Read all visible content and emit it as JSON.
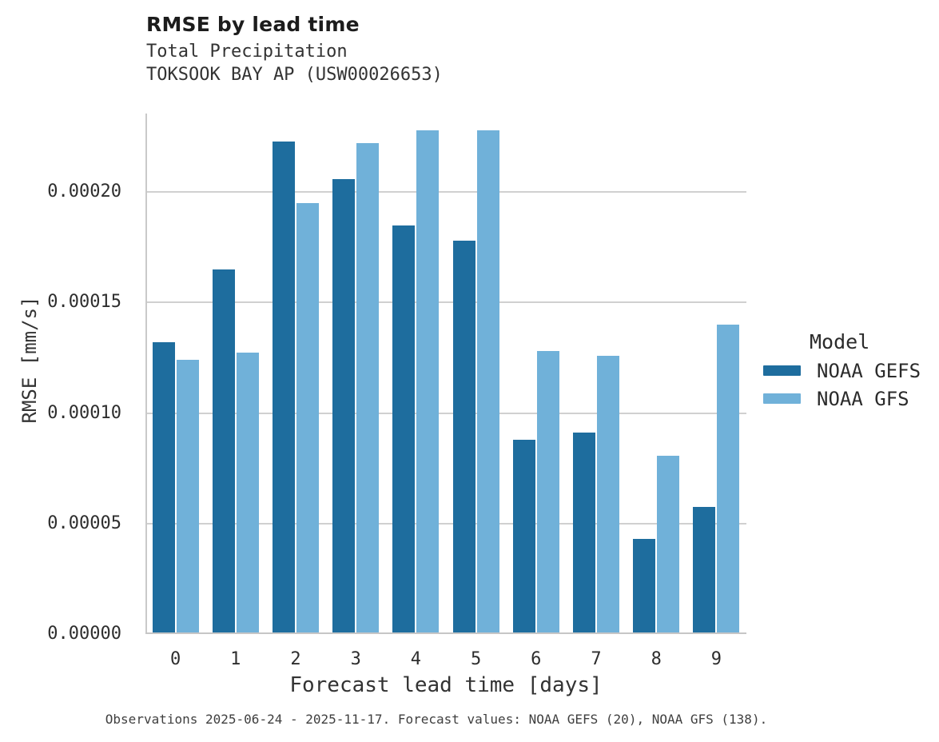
{
  "header": {
    "title": "RMSE by lead time",
    "subtitle": "Total Precipitation",
    "station": "TOKSOOK BAY AP (USW00026653)"
  },
  "axes": {
    "x_label": "Forecast lead time [days]",
    "y_label": "RMSE [mm/s]"
  },
  "legend": {
    "title": "Model",
    "entries": [
      {
        "label": "NOAA GEFS",
        "color": "#1e6d9e"
      },
      {
        "label": "NOAA GFS",
        "color": "#70b1d9"
      }
    ]
  },
  "caption": "Observations 2025-06-24 - 2025-11-17. Forecast values: NOAA GEFS (20), NOAA GFS (138).",
  "chart_data": {
    "type": "bar",
    "title": "RMSE by lead time",
    "subtitle": [
      "Total Precipitation",
      "TOKSOOK BAY AP (USW00026653)"
    ],
    "xlabel": "Forecast lead time [days]",
    "ylabel": "RMSE [mm/s]",
    "categories": [
      "0",
      "1",
      "2",
      "3",
      "4",
      "5",
      "6",
      "7",
      "8",
      "9"
    ],
    "ylim": [
      0,
      0.0002355
    ],
    "grid": "horizontal",
    "legend_position": "right",
    "y_ticks": [
      {
        "value": 0.0,
        "label": "0.00000"
      },
      {
        "value": 5e-05,
        "label": "0.00005"
      },
      {
        "value": 0.0001,
        "label": "0.00010"
      },
      {
        "value": 0.00015,
        "label": "0.00015"
      },
      {
        "value": 0.0002,
        "label": "0.00020"
      }
    ],
    "series": [
      {
        "name": "NOAA GEFS",
        "color": "#1e6d9e",
        "values": [
          0.000132,
          0.000165,
          0.000223,
          0.000206,
          0.000185,
          0.000178,
          8.8e-05,
          9.1e-05,
          4.3e-05,
          5.75e-05
        ]
      },
      {
        "name": "NOAA GFS",
        "color": "#70b1d9",
        "values": [
          0.000124,
          0.0001275,
          0.000195,
          0.000222,
          0.000228,
          0.000228,
          0.000128,
          0.000126,
          8.05e-05,
          0.00014
        ]
      }
    ]
  }
}
